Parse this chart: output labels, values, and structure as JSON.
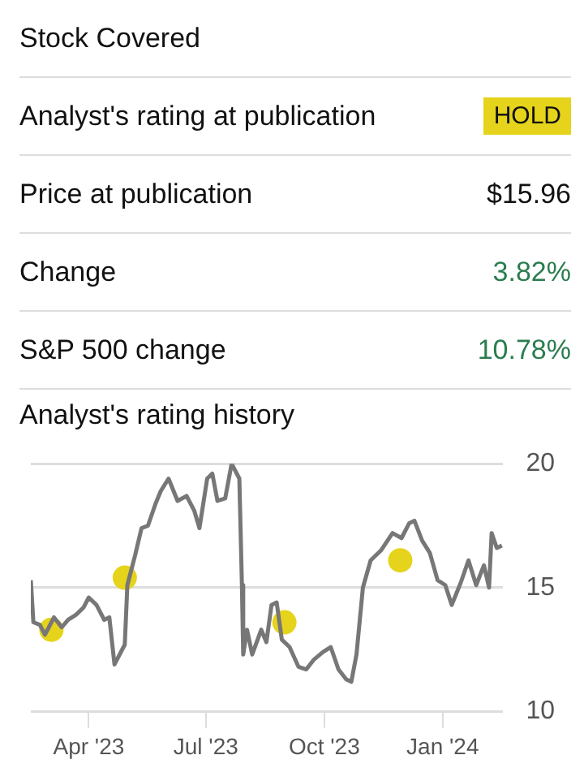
{
  "chart_data": [
    {
      "type": "other",
      "annotations": [
        "Stock Covered",
        "Analyst's rating at publication",
        "HOLD",
        "Price at publication",
        "$15.96",
        "Change",
        "3.82%",
        "S&P 500 change",
        "10.78%"
      ]
    },
    {
      "type": "line",
      "title": "Analyst's rating history",
      "xlim": [
        "2023-02-15",
        "2024-02-17"
      ],
      "xticks": [
        {
          "value": "2023-04-01",
          "label": "Apr '23"
        },
        {
          "value": "2023-07-01",
          "label": "Jul '23"
        },
        {
          "value": "2023-10-01",
          "label": "Oct '23"
        },
        {
          "value": "2024-01-01",
          "label": "Jan '24"
        }
      ],
      "ylim": [
        10,
        20
      ],
      "yticks": [
        10,
        15,
        20
      ],
      "grid": "y",
      "series": [
        {
          "type": "line",
          "color": "#777777",
          "x": [
            "2023-02-15",
            "2023-02-17",
            "2023-02-22",
            "2023-02-26",
            "2023-03-05",
            "2023-03-11",
            "2023-03-16",
            "2023-03-22",
            "2023-03-28",
            "2023-04-01",
            "2023-04-07",
            "2023-04-13",
            "2023-04-17",
            "2023-04-21",
            "2023-04-29",
            "2023-05-01",
            "2023-05-07",
            "2023-05-12",
            "2023-05-17",
            "2023-05-23",
            "2023-05-27",
            "2023-06-02",
            "2023-06-09",
            "2023-06-16",
            "2023-06-22",
            "2023-06-26",
            "2023-07-02",
            "2023-07-06",
            "2023-07-10",
            "2023-07-16",
            "2023-07-21",
            "2023-07-27",
            "2023-07-29",
            "2023-07-30",
            "2023-08-02",
            "2023-08-06",
            "2023-08-13",
            "2023-08-17",
            "2023-08-21",
            "2023-08-25",
            "2023-08-29",
            "2023-09-04",
            "2023-09-11",
            "2023-09-17",
            "2023-09-23",
            "2023-09-30",
            "2023-10-06",
            "2023-10-12",
            "2023-10-18",
            "2023-10-22",
            "2023-10-26",
            "2023-10-31",
            "2023-11-06",
            "2023-11-14",
            "2023-11-23",
            "2023-11-30",
            "2023-12-06",
            "2023-12-10",
            "2023-12-16",
            "2023-12-22",
            "2023-12-28",
            "2024-01-03",
            "2024-01-08",
            "2024-01-15",
            "2024-01-21",
            "2024-01-27",
            "2024-02-02",
            "2024-02-06",
            "2024-02-08",
            "2024-02-12",
            "2024-02-16"
          ],
          "values": [
            15.3,
            13.6,
            13.5,
            13.1,
            13.8,
            13.4,
            13.7,
            13.9,
            14.2,
            14.6,
            14.3,
            13.7,
            13.8,
            11.9,
            12.7,
            15.1,
            16.3,
            17.4,
            17.5,
            18.4,
            18.9,
            19.4,
            18.5,
            18.7,
            18.1,
            17.4,
            19.4,
            19.6,
            18.5,
            18.6,
            20,
            19.4,
            15.1,
            12.3,
            13.3,
            12.3,
            13.3,
            12.8,
            14.3,
            14.4,
            12.9,
            12.6,
            11.8,
            11.7,
            12.1,
            12.4,
            12.6,
            11.7,
            11.3,
            11.2,
            12.3,
            15,
            16.1,
            16.5,
            17.2,
            17,
            17.6,
            17.7,
            16.9,
            16.4,
            15.3,
            15.1,
            14.3,
            15.2,
            16.1,
            15.1,
            15.9,
            15,
            17.2,
            16.6,
            16.7
          ]
        },
        {
          "type": "scatter",
          "color": "#e6d31c",
          "marker": "circle",
          "x": [
            "2023-03-03",
            "2023-04-29",
            "2023-08-31",
            "2023-11-29"
          ],
          "values": [
            13.3,
            15.4,
            13.6,
            16.1
          ]
        }
      ]
    }
  ]
}
